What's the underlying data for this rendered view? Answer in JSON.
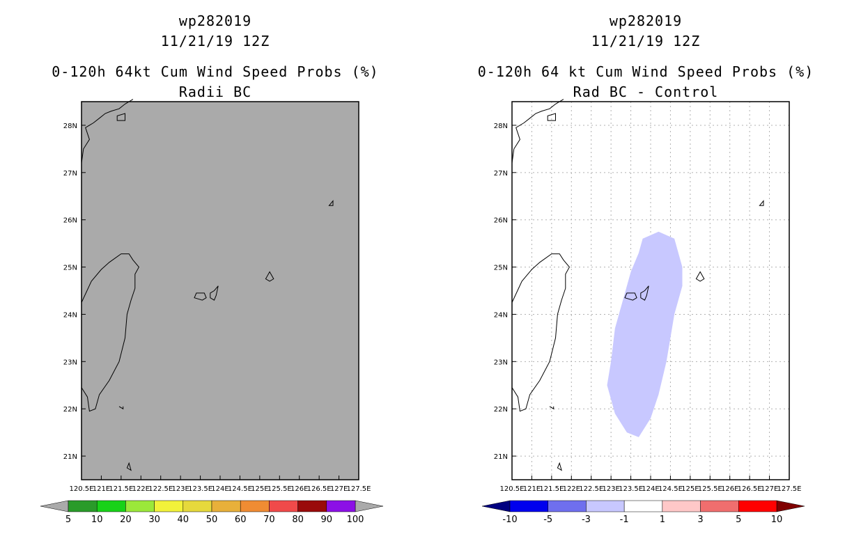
{
  "panels": [
    {
      "id": "left",
      "title_line1": "wp282019",
      "title_line2": "11/21/19 12Z",
      "title_line3": "0-120h 64kt Cum Wind Speed Probs (%)",
      "title_line4": "Radii BC",
      "background": "#aaaaaa",
      "grid": false,
      "colorbar": {
        "labels": [
          "5",
          "10",
          "20",
          "30",
          "40",
          "50",
          "60",
          "70",
          "80",
          "90",
          "100"
        ],
        "colors": [
          "#2a9b2a",
          "#18d218",
          "#9be83a",
          "#f2f23a",
          "#e6d93c",
          "#e8b03a",
          "#f08c33",
          "#f04a4a",
          "#9a0a0a",
          "#8c10e6"
        ],
        "under_color": "#aaaaaa",
        "over_color": "#aaaaaa"
      }
    },
    {
      "id": "right",
      "title_line1": "wp282019",
      "title_line2": "11/21/19 12Z",
      "title_line3": "0-120h 64 kt Cum Wind Speed Probs (%)",
      "title_line4": "Rad BC - Control",
      "background": "#ffffff",
      "grid": true,
      "shade_color": "#c8c8ff",
      "colorbar": {
        "labels": [
          "-10",
          "-5",
          "-3",
          "-1",
          "1",
          "3",
          "5",
          "10"
        ],
        "colors": [
          "#0000ee",
          "#6f6fee",
          "#c8c8ff",
          "#ffffff",
          "#ffc8c8",
          "#f06e6e",
          "#ff0000"
        ],
        "under_color": "#000080",
        "over_color": "#800000"
      }
    }
  ],
  "chart_data": {
    "type": "heatmap",
    "xlim": [
      120.5,
      127.5
    ],
    "ylim": [
      20.5,
      28.5
    ],
    "x_tick_labels": [
      "120.5E",
      "121E",
      "121.5E",
      "122E",
      "122.5E",
      "123E",
      "123.5E",
      "124E",
      "124.5E",
      "125E",
      "125.5E",
      "126E",
      "126.5E",
      "127E",
      "127.5E"
    ],
    "x_tick_values": [
      120.5,
      121,
      121.5,
      122,
      122.5,
      123,
      123.5,
      124,
      124.5,
      125,
      125.5,
      126,
      126.5,
      127,
      127.5
    ],
    "y_tick_labels": [
      "21N",
      "22N",
      "23N",
      "24N",
      "25N",
      "26N",
      "27N",
      "28N"
    ],
    "y_tick_values": [
      21,
      22,
      23,
      24,
      25,
      26,
      27,
      28
    ],
    "diff_region_value_range": "-3 to -1",
    "diff_region_lonlat": [
      [
        123.8,
        25.6
      ],
      [
        124.2,
        25.75
      ],
      [
        124.6,
        25.6
      ],
      [
        124.8,
        25.0
      ],
      [
        124.8,
        24.6
      ],
      [
        124.6,
        24.0
      ],
      [
        124.4,
        23.0
      ],
      [
        124.2,
        22.3
      ],
      [
        124.0,
        21.8
      ],
      [
        123.7,
        21.4
      ],
      [
        123.4,
        21.5
      ],
      [
        123.1,
        21.9
      ],
      [
        122.9,
        22.5
      ],
      [
        123.0,
        23.0
      ],
      [
        123.1,
        23.7
      ],
      [
        123.3,
        24.3
      ],
      [
        123.5,
        24.9
      ],
      [
        123.7,
        25.3
      ]
    ]
  }
}
